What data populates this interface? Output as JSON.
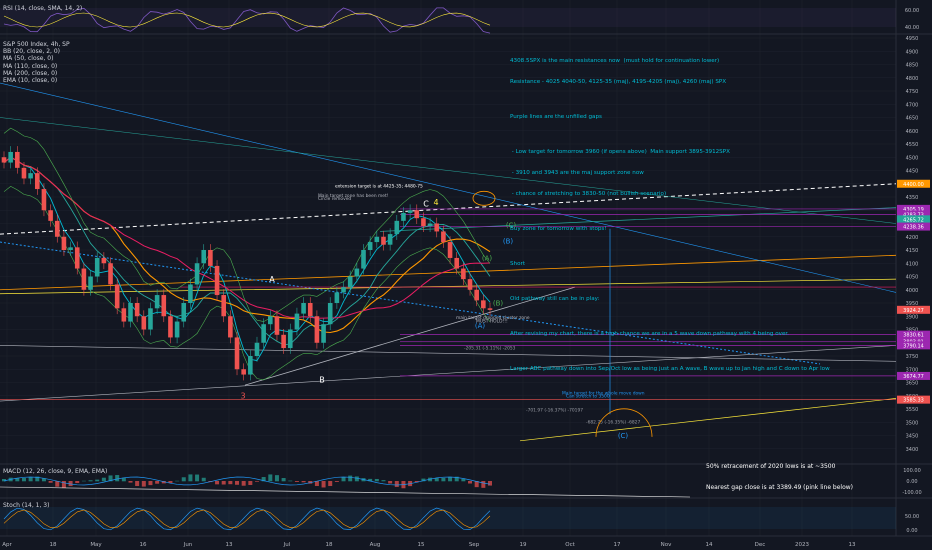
{
  "colors": {
    "bg": "#131722",
    "grid": "#1e222d",
    "up": "#26a69a",
    "down": "#ef5350",
    "cyan": "#00bcd4",
    "orange": "#ff9800",
    "purple": "#9c27b0",
    "yellow": "#ffeb3b",
    "white": "#d1d4dc"
  },
  "panes": {
    "rsi": {
      "label": "RSI (14, close, SMA, 14, 2)",
      "ticks": [
        "60.00",
        "40.00"
      ]
    },
    "main": {
      "label": "S&P 500 Index, 4h, SP",
      "indicators": [
        "BB (20, close, 2, 0)",
        "MA (50, close, 0)",
        "MA (110, close, 0)",
        "MA (200, close, 0)",
        "EMA (10, close, 0)"
      ]
    },
    "macd": {
      "label": "MACD (12, 26, close, 9, EMA, EMA)",
      "ticks": [
        "100.00",
        "0.00",
        "-100.00"
      ]
    },
    "stoch": {
      "label": "Stoch (14, 1, 3)",
      "ticks": [
        "50.00",
        "0.00"
      ]
    }
  },
  "chart_data": {
    "type": "candlestick",
    "symbol": "S&P 500 Index, 4h, SP",
    "ylim": [
      3350,
      4950
    ],
    "y_ticks": [
      "4950",
      "4900",
      "4850",
      "4800",
      "4750",
      "4700",
      "4650",
      "4600",
      "4550",
      "4500",
      "4450",
      "4400",
      "4350",
      "4300",
      "4250",
      "4200",
      "4150",
      "4100",
      "4050",
      "4000",
      "3950",
      "3900",
      "3850",
      "3800",
      "3750",
      "3700",
      "3650",
      "3600",
      "3550",
      "3500",
      "3450",
      "3400"
    ],
    "x_labels": [
      "Apr",
      "18",
      "May",
      "16",
      "Jun",
      "13",
      "Jul",
      "18",
      "Aug",
      "15",
      "Sep",
      "19",
      "Oct",
      "17",
      "Nov",
      "14",
      "Dec",
      "2023",
      "13"
    ],
    "price_badges": [
      {
        "value": "4400.00",
        "color": "#ff9800"
      },
      {
        "value": "4305.19",
        "color": "#9c27b0"
      },
      {
        "value": "4283.73",
        "color": "#9c27b0"
      },
      {
        "value": "4265.72",
        "color": "#26a69a"
      },
      {
        "value": "4238.36",
        "color": "#9c27b0"
      },
      {
        "value": "3924.27",
        "color": "#ef5350"
      },
      {
        "value": "3830.61",
        "color": "#9c27b0"
      },
      {
        "value": "3803.91",
        "color": "#9c27b0"
      },
      {
        "value": "3790.14",
        "color": "#9c27b0"
      },
      {
        "value": "3674.77",
        "color": "#9c27b0"
      },
      {
        "value": "3585.33",
        "color": "#ef5350"
      }
    ],
    "close_path": [
      4480,
      4520,
      4460,
      4420,
      4440,
      4380,
      4300,
      4260,
      4200,
      4150,
      4160,
      4080,
      4000,
      4050,
      4120,
      4100,
      4020,
      3930,
      3880,
      3950,
      3900,
      3850,
      3930,
      3980,
      3900,
      3820,
      3880,
      3950,
      4020,
      4100,
      4150,
      4090,
      3980,
      3900,
      3820,
      3700,
      3680,
      3750,
      3800,
      3870,
      3900,
      3830,
      3780,
      3850,
      3910,
      3950,
      3900,
      3800,
      3870,
      3950,
      3990,
      4010,
      4050,
      4080,
      4150,
      4180,
      4200,
      4170,
      4210,
      4260,
      4290,
      4300,
      4270,
      4240,
      4250,
      4220,
      4180,
      4120,
      4080,
      4040,
      4000,
      3960,
      3930,
      3924
    ],
    "annotations": [
      {
        "text": "A",
        "price": 4030
      },
      {
        "text": "B",
        "price": 3650
      },
      {
        "text": "3",
        "price": 3590
      },
      {
        "text": "4",
        "price": 4320
      },
      {
        "text": "C",
        "price": 4315
      },
      {
        "text": "(B)",
        "price": 4175
      },
      {
        "text": "(A)",
        "price": 4110
      },
      {
        "text": "(C)",
        "price": 4235
      },
      {
        "text": "(B)",
        "price": 3940
      },
      {
        "text": "(A)",
        "price": 3855
      },
      {
        "text": "(C)",
        "price": 3440
      }
    ],
    "small_labels": [
      {
        "text": "extension target is at 4425-35; 4480-75",
        "price": 4385
      },
      {
        "text": "Main target zone has been met!",
        "price": 4350
      },
      {
        "text": "Circle removed",
        "price": 4338
      },
      {
        "text": "main target dropped cluster zone",
        "price": 3890
      },
      {
        "text": "MUST HOLD!!!",
        "price": 3877
      },
      {
        "text": "-205.31 (-5.11%) -2053",
        "price": 3775
      },
      {
        "text": "Main target for the whole move down",
        "price": 3605
      },
      {
        "text": "Can stretch to 3500",
        "price": 3593
      },
      {
        "text": "-701.97 (-16.37%) -70197",
        "price": 3540
      },
      {
        "text": "-682.75 (-16.35%) -6827",
        "price": 3495
      }
    ]
  },
  "notes": {
    "top_lines": [
      "4308.5SPX is the main resistances now  (must hold for continuation lower)",
      "Resistance - 4025 4040-50, 4125-35 (maj), 4195-4205 (maj), 4260 (maj) SPX",
      "",
      "Purple lines are the unfilled gaps",
      "",
      " - Low target for tomorrow 3960 (if opens above)  Main support 3895-3912SPX",
      " - 3910 and 3943 are the maj support zone now",
      " - chance of stretching to 3830-50 (not bullish scenario)",
      "",
      "Buy zone for tomorrow with stops!",
      "",
      "Short",
      "",
      "Old pathway still can be in play:",
      "",
      "After revising my chart, there is a high chance we are in a 5 wave down pathway with 4 being over.",
      "",
      "Larger ABC pathway down into Sep/Oct low as being just an A wave, B wave up to Jan high and C down to Apr low"
    ],
    "bottom_lines": [
      "50% retracement of 2020 lows is at ~3500",
      "Nearest gap close is at 3389.49 (pink line below)"
    ]
  }
}
